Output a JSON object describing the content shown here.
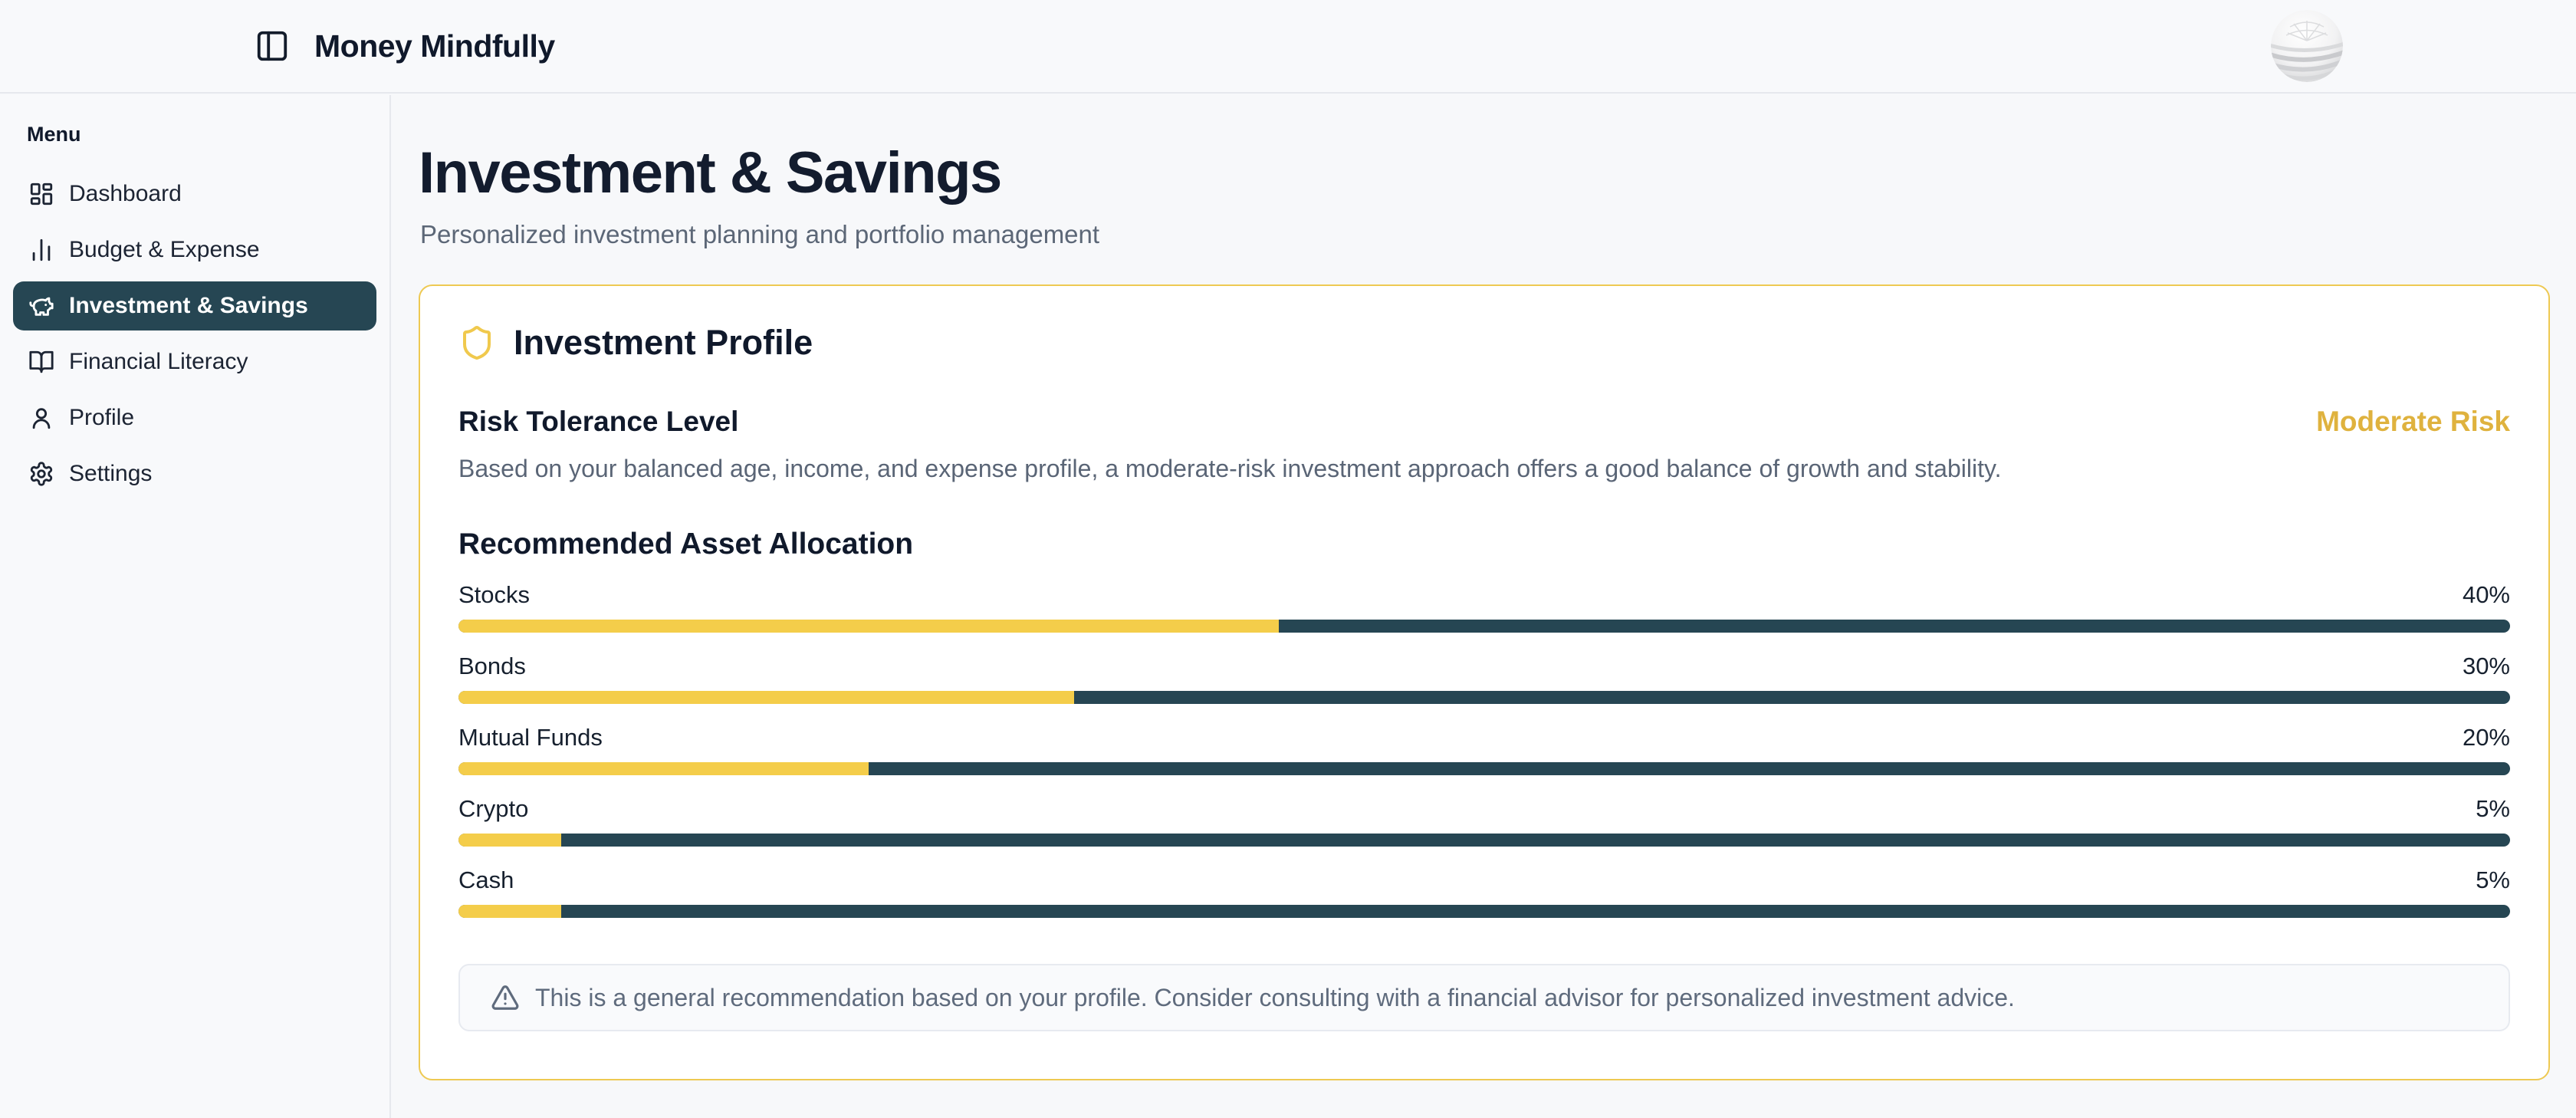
{
  "header": {
    "title": "Money Mindfully"
  },
  "sidebar": {
    "menu_label": "Menu",
    "items": [
      {
        "label": "Dashboard",
        "icon": "dashboard-icon",
        "active": false
      },
      {
        "label": "Budget & Expense",
        "icon": "bar-chart-icon",
        "active": false
      },
      {
        "label": "Investment & Savings",
        "icon": "piggy-bank-icon",
        "active": true
      },
      {
        "label": "Financial Literacy",
        "icon": "book-open-icon",
        "active": false
      },
      {
        "label": "Profile",
        "icon": "user-icon",
        "active": false
      },
      {
        "label": "Settings",
        "icon": "gear-icon",
        "active": false
      }
    ]
  },
  "page": {
    "title": "Investment & Savings",
    "subtitle": "Personalized investment planning and portfolio management"
  },
  "card": {
    "title": "Investment Profile",
    "risk": {
      "heading": "Risk Tolerance Level",
      "badge": "Moderate Risk",
      "description": "Based on your balanced age, income, and expense profile, a moderate-risk investment approach offers a good balance of growth and stability."
    },
    "allocation": {
      "heading": "Recommended Asset Allocation",
      "items": [
        {
          "label": "Stocks",
          "percent": 40,
          "percent_label": "40%"
        },
        {
          "label": "Bonds",
          "percent": 30,
          "percent_label": "30%"
        },
        {
          "label": "Mutual Funds",
          "percent": 20,
          "percent_label": "20%"
        },
        {
          "label": "Crypto",
          "percent": 5,
          "percent_label": "5%"
        },
        {
          "label": "Cash",
          "percent": 5,
          "percent_label": "5%"
        }
      ]
    },
    "note": "This is a general recommendation based on your profile. Consider consulting with a financial advisor for personalized investment advice."
  },
  "colors": {
    "accent_dark_teal": "#264653",
    "accent_yellow": "#f4cd4a",
    "gold_text": "#dfb23e",
    "card_border": "#eec952",
    "page_background": "#f7f8fa",
    "heading_text": "#10192b",
    "muted_text": "#5a6576"
  }
}
